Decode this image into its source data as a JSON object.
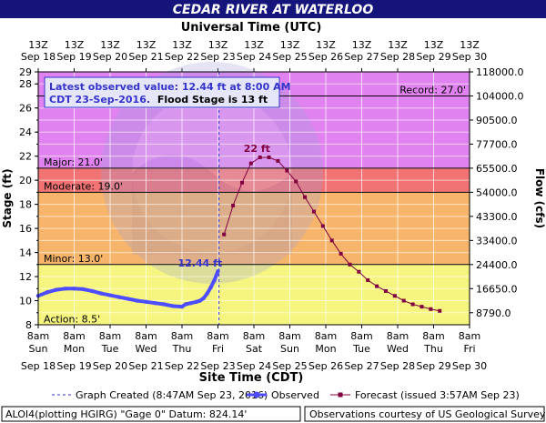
{
  "header": {
    "title": "CEDAR RIVER AT WATERLOO"
  },
  "top_axis": {
    "title": "Universal Time (UTC)",
    "hours": [
      "13Z",
      "13Z",
      "13Z",
      "13Z",
      "13Z",
      "13Z",
      "13Z",
      "13Z",
      "13Z",
      "13Z",
      "13Z",
      "13Z",
      "13Z"
    ],
    "dates": [
      "Sep 18",
      "Sep 19",
      "Sep 20",
      "Sep 21",
      "Sep 22",
      "Sep 23",
      "Sep 24",
      "Sep 25",
      "Sep 26",
      "Sep 27",
      "Sep 28",
      "Sep 29",
      "Sep 30"
    ]
  },
  "bottom_axis": {
    "title": "Site Time (CDT)",
    "hours": [
      "8am",
      "8am",
      "8am",
      "8am",
      "8am",
      "8am",
      "8am",
      "8am",
      "8am",
      "8am",
      "8am",
      "8am",
      "8am"
    ],
    "days": [
      "Sun",
      "Mon",
      "Tue",
      "Wed",
      "Thu",
      "Fri",
      "Sat",
      "Sun",
      "Mon",
      "Tue",
      "Wed",
      "Thu",
      "Fri"
    ],
    "dates": [
      "Sep 18",
      "Sep 19",
      "Sep 20",
      "Sep 21",
      "Sep 22",
      "Sep 23",
      "Sep 24",
      "Sep 25",
      "Sep 26",
      "Sep 27",
      "Sep 28",
      "Sep 29",
      "Sep 30"
    ]
  },
  "left_axis": {
    "title": "Stage (ft)",
    "ticks": [
      "8",
      "10",
      "12",
      "14",
      "16",
      "18",
      "20",
      "22",
      "24",
      "26",
      "28",
      "29"
    ]
  },
  "right_axis": {
    "title": "Flow (cfs)",
    "ticks": [
      {
        "stage": 9,
        "label": "8790.0"
      },
      {
        "stage": 11,
        "label": "16650.0"
      },
      {
        "stage": 13,
        "label": "24400.0"
      },
      {
        "stage": 15,
        "label": "33400.0"
      },
      {
        "stage": 17,
        "label": "43300.0"
      },
      {
        "stage": 19,
        "label": "54000.0"
      },
      {
        "stage": 21,
        "label": "65500.0"
      },
      {
        "stage": 23,
        "label": "77700.0"
      },
      {
        "stage": 25,
        "label": "90500.0"
      },
      {
        "stage": 27,
        "label": "104000.0"
      },
      {
        "stage": 29,
        "label": "118000.0"
      }
    ]
  },
  "info_box": {
    "line1": "Latest observed value: 12.44 ft at 8:00 AM",
    "line2a": "CDT 23-Sep-2016.",
    "line2b": "Flood Stage is 13 ft"
  },
  "bands": [
    {
      "name": "Record",
      "label": "Record: 27.0'",
      "lo": 27,
      "hi": 29,
      "color": "#e083f0"
    },
    {
      "name": "Major",
      "label": "Major: 21.0'",
      "lo": 21,
      "hi": 27,
      "color": "#e083f0"
    },
    {
      "name": "Moderate",
      "label": "Moderate: 19.0'",
      "lo": 19,
      "hi": 21,
      "color": "#f27373"
    },
    {
      "name": "Minor",
      "label": "Minor: 13.0'",
      "lo": 13,
      "hi": 19,
      "color": "#f7b56b"
    },
    {
      "name": "Action",
      "label": "Action: 8.5'",
      "lo": 8,
      "hi": 13,
      "color": "#f5f57f"
    }
  ],
  "annotations": {
    "observed_peak": "12.44 ft",
    "forecast_peak": "22 ft"
  },
  "legend": {
    "graph_created": "Graph Created (8:47AM Sep 23, 2016)",
    "observed": "Observed",
    "forecast": "Forecast (issued 3:57AM Sep 23)"
  },
  "footer": {
    "left": "ALOI4(plotting HGIRG) \"Gage 0\" Datum: 824.14'",
    "right": "Observations courtesy of US Geological Survey"
  },
  "colors": {
    "title_bg": "#14147a",
    "observed": "#4d4dff",
    "forecast": "#800040",
    "info_text": "#3333cc"
  },
  "chart_data": {
    "type": "line",
    "x_unit": "days after 8am CDT Sun Sep 18",
    "xlim": [
      0,
      12
    ],
    "ylim": [
      8,
      29
    ],
    "created_x": 5.03,
    "series": [
      {
        "name": "Observed",
        "x": [
          0,
          0.25,
          0.5,
          0.75,
          1,
          1.25,
          1.5,
          1.75,
          2,
          2.25,
          2.5,
          2.75,
          3,
          3.25,
          3.5,
          3.75,
          4,
          4.1,
          4.25,
          4.4,
          4.5,
          4.6,
          4.7,
          4.8,
          4.9,
          5
        ],
        "y": [
          10.4,
          10.7,
          10.9,
          11.0,
          11.0,
          10.95,
          10.8,
          10.6,
          10.45,
          10.3,
          10.15,
          10.0,
          9.9,
          9.8,
          9.7,
          9.55,
          9.5,
          9.7,
          9.8,
          9.9,
          10.0,
          10.2,
          10.6,
          11.1,
          11.7,
          12.44
        ]
      },
      {
        "name": "Forecast",
        "x": [
          5.17,
          5.42,
          5.67,
          5.92,
          6.17,
          6.42,
          6.67,
          6.92,
          7.17,
          7.42,
          7.67,
          7.92,
          8.17,
          8.42,
          8.67,
          8.92,
          9.17,
          9.42,
          9.67,
          9.92,
          10.17,
          10.42,
          10.67,
          10.92,
          11.17
        ],
        "y": [
          15.5,
          17.9,
          19.8,
          21.4,
          21.9,
          21.9,
          21.6,
          20.8,
          19.9,
          18.6,
          17.4,
          16.2,
          15.0,
          13.9,
          13.0,
          12.4,
          11.7,
          11.2,
          10.8,
          10.4,
          10.0,
          9.7,
          9.5,
          9.3,
          9.15
        ]
      }
    ]
  }
}
